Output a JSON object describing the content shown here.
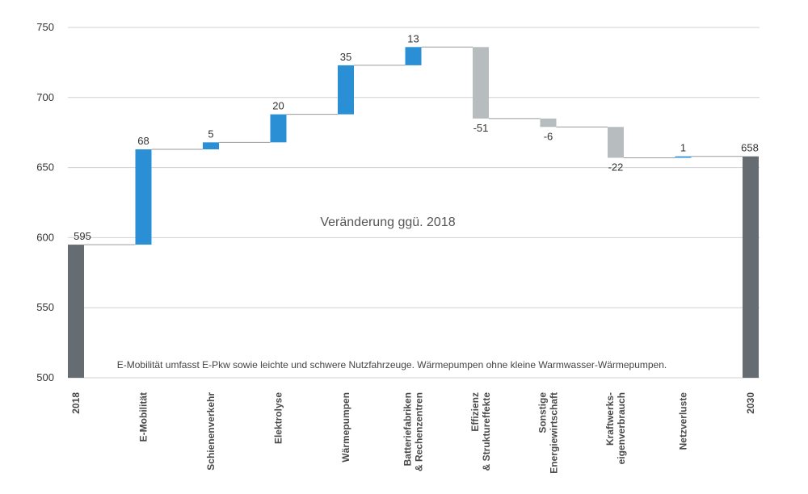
{
  "chart_data": {
    "type": "waterfall",
    "title": "",
    "xlabel": "",
    "ylabel": "",
    "ylim": [
      500,
      750
    ],
    "yticks": [
      500,
      550,
      600,
      650,
      700,
      750
    ],
    "grid": true,
    "categories": [
      [
        "2018"
      ],
      [
        "E-Mobilität"
      ],
      [
        "Schienenverkehr"
      ],
      [
        "Elektrolyse"
      ],
      [
        "Wärmepumpen"
      ],
      [
        "Batteriefabriken",
        "& Rechenzentren"
      ],
      [
        "Effizienz",
        "& Struktureffekte"
      ],
      [
        "Sonstige",
        "Energiewirtschaft"
      ],
      [
        "Kraftwerks-",
        "eigenverbrauch"
      ],
      [
        "Netzverluste"
      ],
      [
        "2030"
      ]
    ],
    "bars": [
      {
        "kind": "total",
        "value": 595,
        "label": "595"
      },
      {
        "kind": "delta",
        "value": 68,
        "label": "68"
      },
      {
        "kind": "delta",
        "value": 5,
        "label": "5"
      },
      {
        "kind": "delta",
        "value": 20,
        "label": "20"
      },
      {
        "kind": "delta",
        "value": 35,
        "label": "35"
      },
      {
        "kind": "delta",
        "value": 13,
        "label": "13"
      },
      {
        "kind": "delta",
        "value": -51,
        "label": "-51"
      },
      {
        "kind": "delta",
        "value": -6,
        "label": "-6"
      },
      {
        "kind": "delta",
        "value": -22,
        "label": "-22"
      },
      {
        "kind": "delta",
        "value": 1,
        "label": "1"
      },
      {
        "kind": "total",
        "value": 658,
        "label": "658"
      }
    ],
    "annotations": {
      "center": "Veränderung ggü. 2018",
      "footnote": "E-Mobilität umfasst E-Pkw sowie leichte und schwere Nutzfahrzeuge. Wärmepumpen ohne kleine Warmwasser-Wärmepumpen."
    },
    "colors": {
      "total": "#656d73",
      "increase": "#2b8fd6",
      "decrease": "#b7bcbf",
      "grid": "#d0d0d0",
      "connector": "#9a9a9a",
      "text": "#333333"
    }
  }
}
